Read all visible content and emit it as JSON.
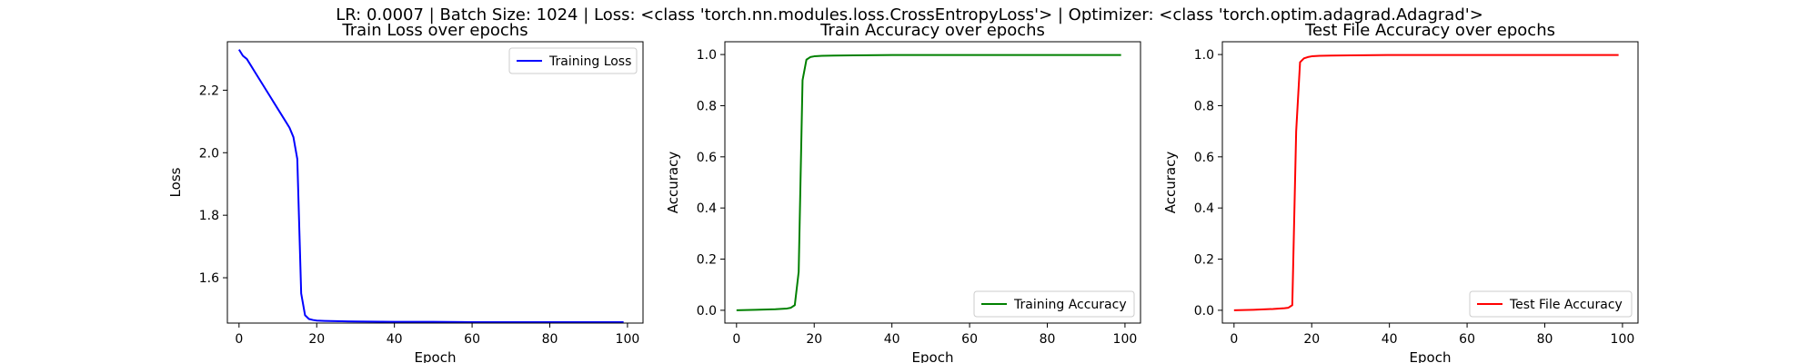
{
  "suptitle": "LR: 0.0007 | Batch Size: 1024 | Loss: <class 'torch.nn.modules.loss.CrossEntropyLoss'> | Optimizer: <class 'torch.optim.adagrad.Adagrad'>",
  "chart_data": [
    {
      "type": "line",
      "title": "Train Loss over epochs",
      "xlabel": "Epoch",
      "ylabel": "Loss",
      "xlim": [
        -3,
        104
      ],
      "ylim": [
        1.455,
        2.355
      ],
      "xticks": [
        0,
        20,
        40,
        60,
        80,
        100
      ],
      "yticks": [
        1.6,
        1.8,
        2.0,
        2.2
      ],
      "ytick_labels": [
        "1.6",
        "1.8",
        "2.0",
        "2.2"
      ],
      "grid": false,
      "legend": "upper right",
      "series": [
        {
          "name": "Training Loss",
          "color": "#0000ff",
          "x": [
            0,
            1,
            2,
            3,
            4,
            5,
            6,
            7,
            8,
            9,
            10,
            11,
            12,
            13,
            14,
            15,
            16,
            17,
            18,
            19,
            20,
            22,
            25,
            30,
            40,
            50,
            60,
            70,
            80,
            90,
            99
          ],
          "y": [
            2.33,
            2.31,
            2.3,
            2.28,
            2.26,
            2.24,
            2.22,
            2.2,
            2.18,
            2.16,
            2.14,
            2.12,
            2.1,
            2.08,
            2.05,
            1.98,
            1.55,
            1.48,
            1.468,
            1.465,
            1.463,
            1.462,
            1.461,
            1.46,
            1.459,
            1.459,
            1.458,
            1.458,
            1.458,
            1.458,
            1.458
          ]
        }
      ]
    },
    {
      "type": "line",
      "title": "Train Accuracy over epochs",
      "xlabel": "Epoch",
      "ylabel": "Accuracy",
      "xlim": [
        -3,
        104
      ],
      "ylim": [
        -0.05,
        1.05
      ],
      "xticks": [
        0,
        20,
        40,
        60,
        80,
        100
      ],
      "yticks": [
        0.0,
        0.2,
        0.4,
        0.6,
        0.8,
        1.0
      ],
      "ytick_labels": [
        "0.0",
        "0.2",
        "0.4",
        "0.6",
        "0.8",
        "1.0"
      ],
      "grid": false,
      "legend": "lower right",
      "series": [
        {
          "name": "Training Accuracy",
          "color": "#008000",
          "x": [
            0,
            5,
            10,
            13,
            14,
            15,
            16,
            17,
            18,
            19,
            20,
            22,
            25,
            30,
            40,
            60,
            80,
            99
          ],
          "y": [
            0.0,
            0.002,
            0.004,
            0.007,
            0.01,
            0.02,
            0.15,
            0.9,
            0.98,
            0.99,
            0.993,
            0.995,
            0.996,
            0.997,
            0.998,
            0.998,
            0.998,
            0.998
          ]
        }
      ]
    },
    {
      "type": "line",
      "title": "Test File Accuracy over epochs",
      "xlabel": "Epoch",
      "ylabel": "Accuracy",
      "xlim": [
        -3,
        104
      ],
      "ylim": [
        -0.05,
        1.05
      ],
      "xticks": [
        0,
        20,
        40,
        60,
        80,
        100
      ],
      "yticks": [
        0.0,
        0.2,
        0.4,
        0.6,
        0.8,
        1.0
      ],
      "ytick_labels": [
        "0.0",
        "0.2",
        "0.4",
        "0.6",
        "0.8",
        "1.0"
      ],
      "grid": false,
      "legend": "lower right",
      "series": [
        {
          "name": "Test File Accuracy",
          "color": "#ff0000",
          "x": [
            0,
            5,
            10,
            13,
            14,
            15,
            16,
            17,
            18,
            19,
            20,
            22,
            25,
            30,
            40,
            60,
            80,
            99
          ],
          "y": [
            0.0,
            0.002,
            0.005,
            0.008,
            0.01,
            0.02,
            0.7,
            0.97,
            0.985,
            0.99,
            0.993,
            0.995,
            0.996,
            0.997,
            0.998,
            0.998,
            0.998,
            0.998
          ]
        }
      ]
    }
  ]
}
